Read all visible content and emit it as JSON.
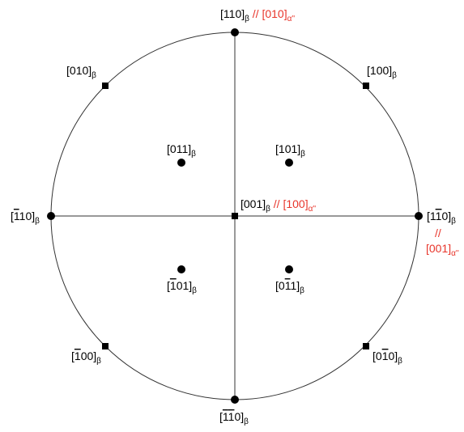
{
  "colors": {
    "black": "#000000",
    "red": "#e8352b",
    "line": "#333333"
  },
  "center_label": {
    "beta_text": "[001]",
    "beta_sub": "β",
    "sep": " // ",
    "alpha_text": "[100]",
    "alpha_sub": "α''"
  },
  "poles": {
    "top": {
      "marker": "circle",
      "beta": [
        "[",
        "1",
        "1",
        "0",
        "]"
      ],
      "sub": "β",
      "alpha_text": "[010]",
      "alpha_sub": "α''",
      "sep": " // "
    },
    "bottom": {
      "marker": "circle",
      "beta": [
        "[",
        "1",
        "1",
        "0",
        "]"
      ],
      "sub": "β"
    },
    "left": {
      "marker": "circle",
      "beta": [
        "[",
        "1",
        "1",
        "0",
        "]"
      ],
      "sub": "β"
    },
    "right": {
      "marker": "circle",
      "beta": [
        "[",
        "1",
        "1",
        "0",
        "]"
      ],
      "sub": "β",
      "sep": "//",
      "alpha_text": "[001]",
      "alpha_sub": "α''"
    },
    "upper_left": {
      "marker": "square",
      "beta": [
        "[",
        "0",
        "1",
        "0",
        "]"
      ],
      "sub": "β"
    },
    "upper_right": {
      "marker": "square",
      "beta": [
        "[",
        "1",
        "0",
        "0",
        "]"
      ],
      "sub": "β"
    },
    "lower_left": {
      "marker": "square",
      "beta": [
        "[",
        "1",
        "0",
        "0",
        "]"
      ],
      "sub": "β"
    },
    "lower_right": {
      "marker": "square",
      "beta": [
        "[",
        "0",
        "1",
        "0",
        "]"
      ],
      "sub": "β"
    },
    "inner_upper_left": {
      "marker": "circle",
      "beta": [
        "[",
        "0",
        "1",
        "1",
        "]"
      ],
      "sub": "β"
    },
    "inner_upper_right": {
      "marker": "circle",
      "beta": [
        "[",
        "1",
        "0",
        "1",
        "]"
      ],
      "sub": "β"
    },
    "inner_lower_left": {
      "marker": "circle",
      "beta": [
        "[",
        "1",
        "0",
        "1",
        "]"
      ],
      "sub": "β"
    },
    "inner_lower_right": {
      "marker": "circle",
      "beta": [
        "[",
        "0",
        "1",
        "1",
        "]"
      ],
      "sub": "β"
    }
  }
}
